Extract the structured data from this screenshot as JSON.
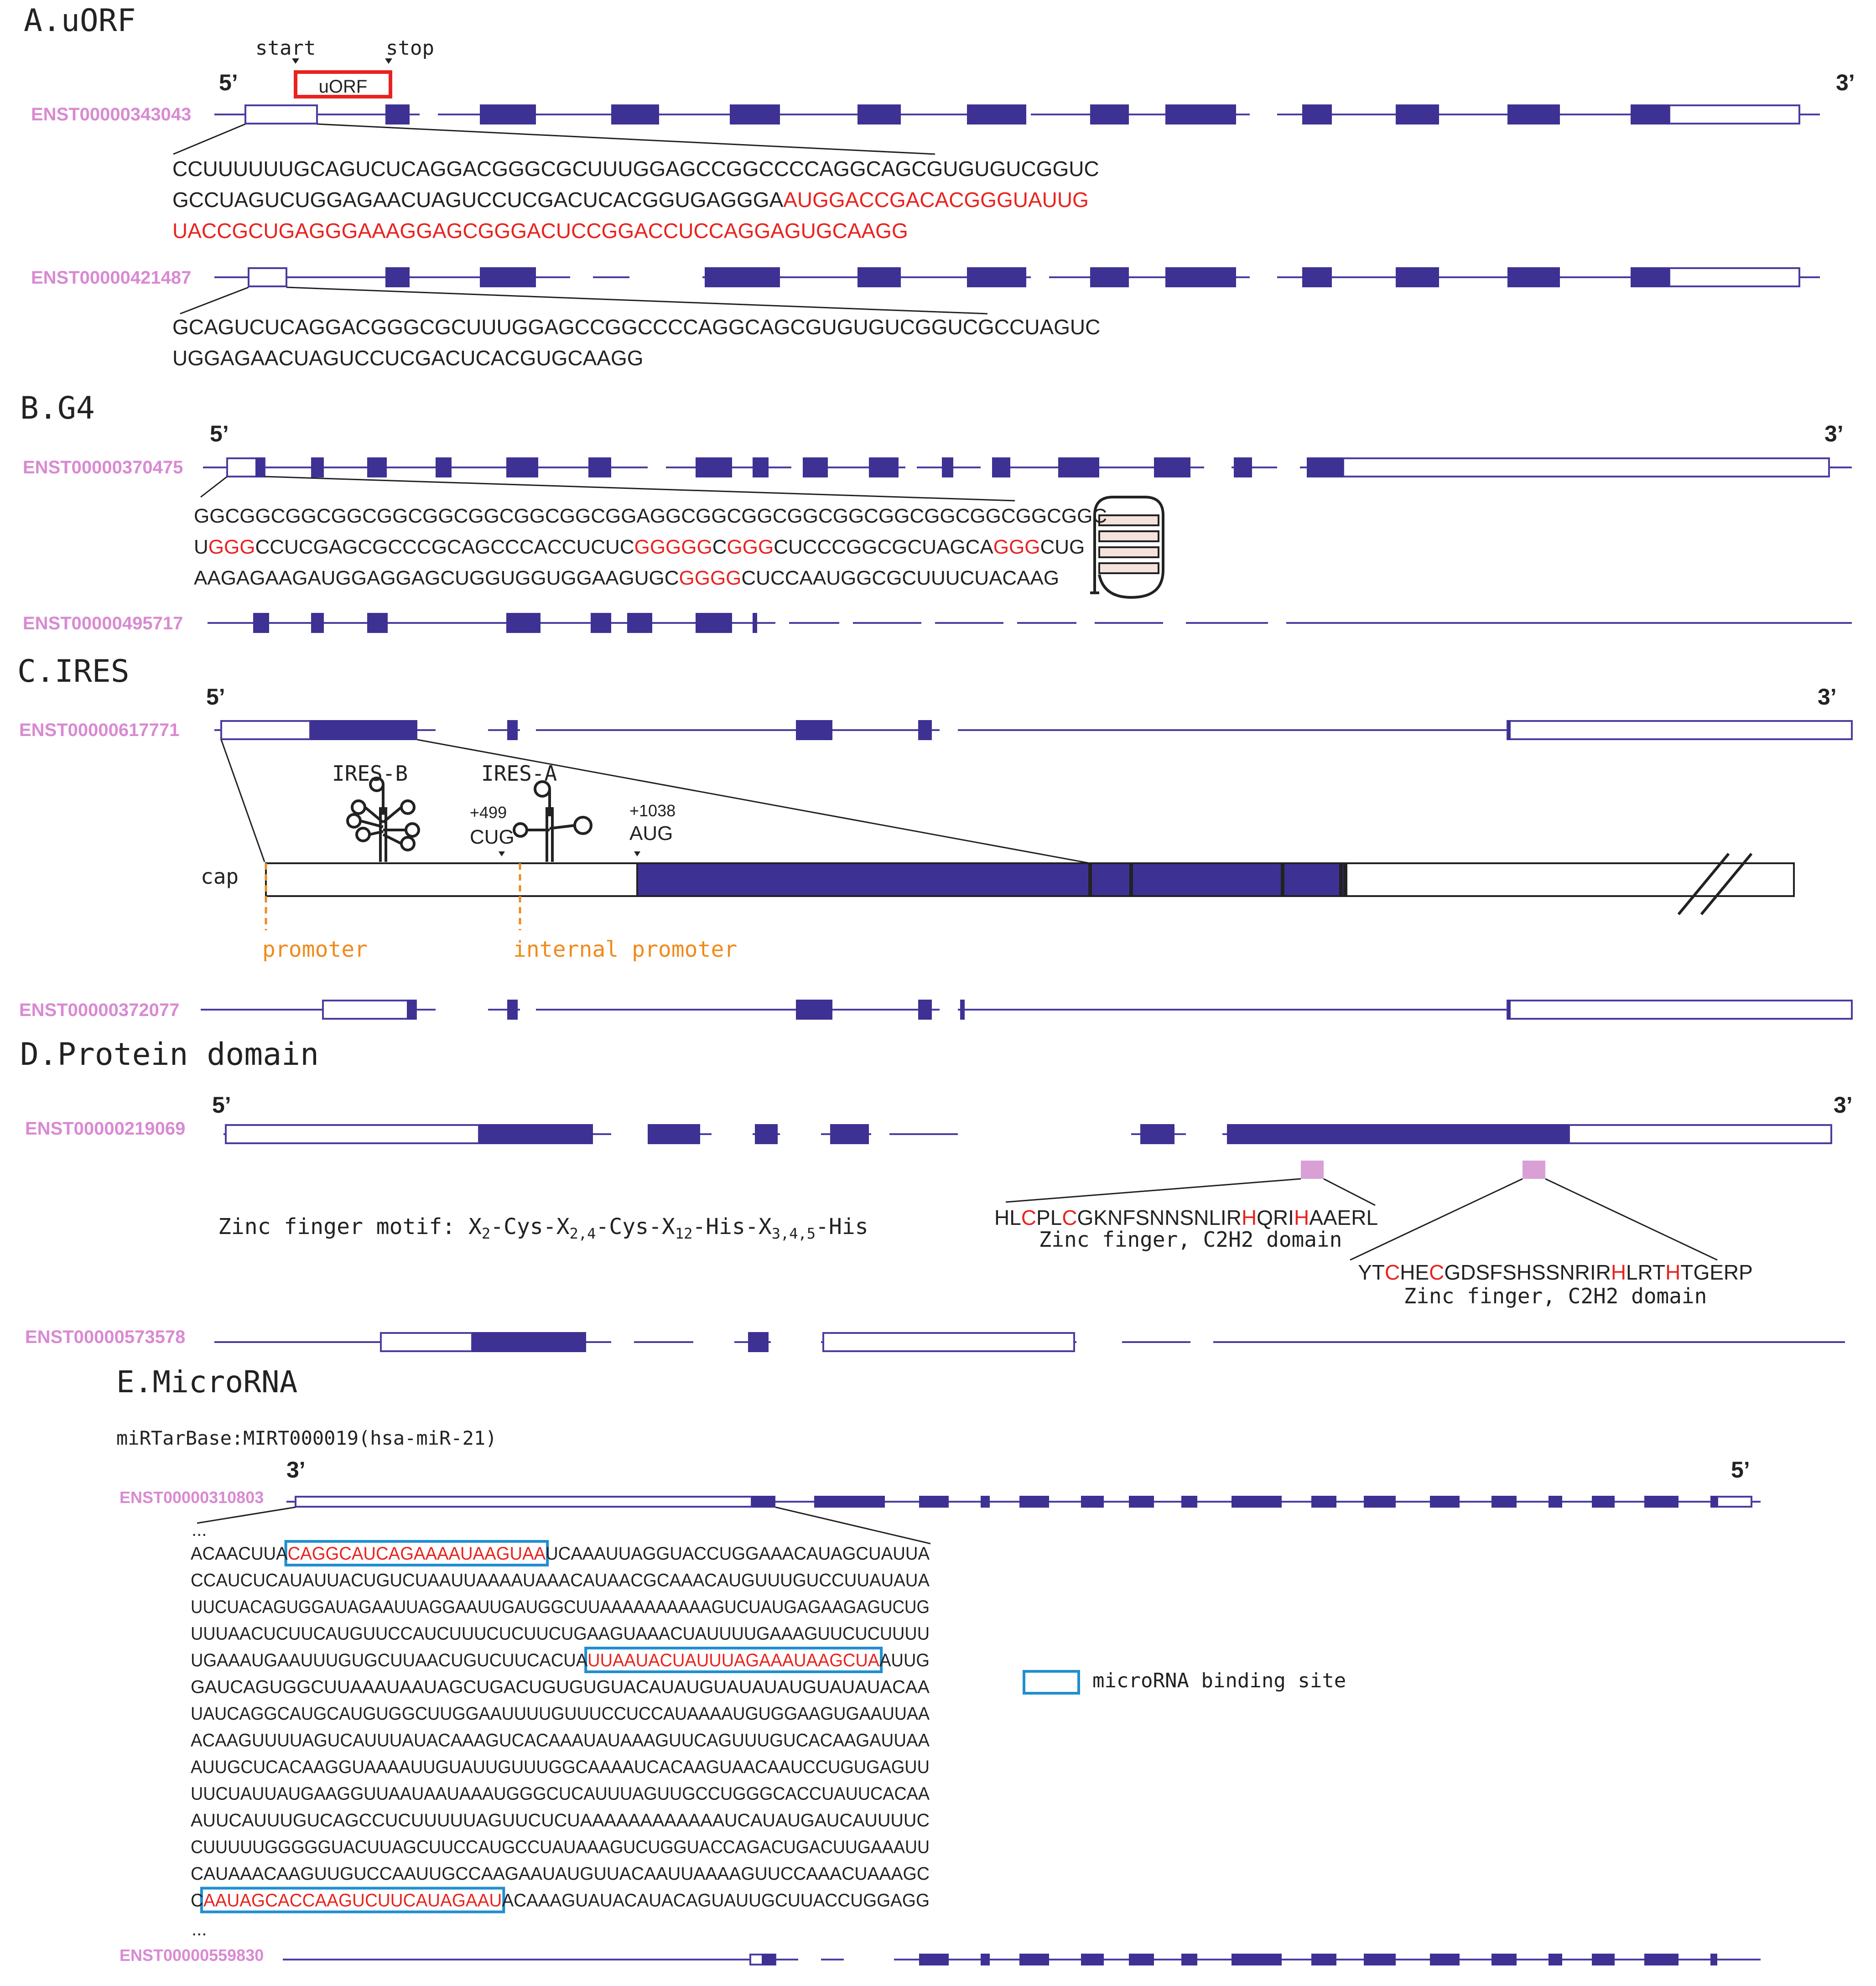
{
  "colors": {
    "exon": "#3e3194",
    "line": "#4a3ea0",
    "tid": "#d98ad2",
    "red": "#e8231f",
    "orange": "#f08a1c",
    "blue": "#1f8fcf",
    "motif": "#d8a0d4",
    "text": "#222222"
  },
  "sectionA": {
    "title": "A.uORF",
    "start_label": "start",
    "stop_label": "stop",
    "uorf_label": "uORF",
    "five": "5’",
    "three": "3’",
    "tx1": "ENST00000343043",
    "tx2": "ENST00000421487",
    "seq1": [
      [
        [
          "CCUUUUUUGCAGUCUCAGGACGGGCGCUUUGGAGCCGGCCCCAGGCAGCGUGUGUCGGUC",
          "n"
        ]
      ],
      [
        [
          "GCCUAGUCUGGAGAACUAGUCCUCGACUCACGGUGAGGGA",
          "n"
        ],
        [
          "AUGGACCGACACGGGUAUUG",
          "r"
        ]
      ],
      [
        [
          "UACCGCUGAGGGAAAGGAGCGGGACUCCGGACCUCCAGGAGUGCAAGG",
          "r"
        ]
      ]
    ],
    "seq2": [
      [
        [
          "GCAGUCUCAGGACGGGCGCUUUGGAGCCGGCCCCAGGCAGCGUGUGUCGGUCGCCUAGUC",
          "n"
        ]
      ],
      [
        [
          "UGGAGAACUAGUCCUCGACUCACGUGCAAGG",
          "n"
        ]
      ]
    ]
  },
  "sectionB": {
    "title": "B.G4",
    "five": "5’",
    "three": "3’",
    "tx1": "ENST00000370475",
    "tx2": "ENST00000495717",
    "seq": [
      [
        [
          "GGCGGCGGCGGCGGCGGCGGCGGCGGCGGAGGCGGCGGCGGCGGCGGCGGCGGCGGCGGC",
          "n"
        ]
      ],
      [
        [
          "U",
          "n"
        ],
        [
          "GGG",
          "r"
        ],
        [
          "CCUCGAGCGCCCGCAGCCCACCUCUC",
          "n"
        ],
        [
          "GGGGG",
          "r"
        ],
        [
          "C",
          "n"
        ],
        [
          "GGG",
          "r"
        ],
        [
          "CUCCCGGCGCUAGCA",
          "n"
        ],
        [
          "GGG",
          "r"
        ],
        [
          "CUG",
          "n"
        ]
      ],
      [
        [
          "AAGAGAAGAUGGAGGAGCUGGUGGUGGAAGUGC",
          "n"
        ],
        [
          "GGGG",
          "r"
        ],
        [
          "CUCCAAUGGCGCUUUCUACAAG",
          "n"
        ]
      ]
    ]
  },
  "sectionC": {
    "title": "C.IRES",
    "five": "5’",
    "three": "3’",
    "tx1": "ENST00000617771",
    "tx2": "ENST00000372077",
    "ires_b": "IRES-B",
    "ires_a": "IRES-A",
    "pos_cug": "+499",
    "cug": "CUG",
    "pos_aug": "+1038",
    "aug": "AUG",
    "cap": "cap",
    "promoter": "promoter",
    "internal_promoter": "internal promoter"
  },
  "sectionD": {
    "title": "D.Protein domain",
    "five": "5’",
    "three": "3’",
    "tx1": "ENST00000219069",
    "tx2": "ENST00000573578",
    "motif_lead": "Zinc finger motif: X",
    "motif_parts": [
      "2",
      "-Cys-X",
      "2,4",
      "-Cys-X",
      "12",
      "-His-X",
      "3,4,5",
      "-His"
    ],
    "zf1_seq": [
      [
        "HL",
        "n"
      ],
      [
        "C",
        "r"
      ],
      [
        "PL",
        "n"
      ],
      [
        "C",
        "r"
      ],
      [
        "GKNFSNNSNLIR",
        "n"
      ],
      [
        "H",
        "r"
      ],
      [
        "QRI",
        "n"
      ],
      [
        "H",
        "r"
      ],
      [
        "AAERL",
        "n"
      ]
    ],
    "zf1_label": "Zinc finger, C2H2 domain",
    "zf2_seq": [
      [
        "YT",
        "n"
      ],
      [
        "C",
        "r"
      ],
      [
        "HE",
        "n"
      ],
      [
        "C",
        "r"
      ],
      [
        "GDSFSHSSNRIR",
        "n"
      ],
      [
        "H",
        "r"
      ],
      [
        "LRT",
        "n"
      ],
      [
        "H",
        "r"
      ],
      [
        "TGERP",
        "n"
      ]
    ],
    "zf2_label": "Zinc finger, C2H2 domain"
  },
  "sectionE": {
    "title": "E.MicroRNA",
    "source": "miRTarBase:MIRT000019(hsa-miR-21)",
    "three": "3’",
    "five": "5’",
    "tx1": "ENST00000310803",
    "tx2": "ENST00000559830",
    "ellipsis": "...",
    "legend": "microRNA binding site",
    "seq": [
      [
        [
          "ACAACUUA",
          "n"
        ],
        [
          "CAGGCAUCAGAAAAUAAGUAA",
          "b"
        ],
        [
          "UCAAAUUAGGUACCUGGAAACAUAGCUAUUA",
          "n"
        ]
      ],
      [
        [
          "CCAUCUCAUAUUACUGUCUAAUUAAAAUAAACAUAACGCAAACAUGUUUGUCCUUAUAUA",
          "n"
        ]
      ],
      [
        [
          "UUCUACAGUGGAUAGAAUUAGGAAUUGAUGGCUUAAAAAAAAAAGUCUAUGAGAAGAGUCUG",
          "n"
        ]
      ],
      [
        [
          "UUUAACUCUUCAUGUUCCAUCUUUCUCUUCUGAAGUAAACUAUUUUGAAAGUUCUCUUUU",
          "n"
        ]
      ],
      [
        [
          "UGAAAUGAAUUUGUGCUUAACUGUCUUCACUA",
          "n"
        ],
        [
          "UUAAUACUAUUUAGAAAUAAGCUA",
          "b"
        ],
        [
          "AUUG",
          "n"
        ]
      ],
      [
        [
          "GAUCAGUGGCUUAAAUAAUAGCUGACUGUGUGUACAUAUGUAUAUAUGUAUAUACAA",
          "n"
        ]
      ],
      [
        [
          "UAUCAGGCAUGCAUGUGGCUUGGAAUUUUGUUUCCUCCAUAAAAUGUGGAAGUGAAUUAA",
          "n"
        ]
      ],
      [
        [
          "ACAAGUUUUAGUCAUUUAUACAAAGUCACAAAUAUAAAGUUCAGUUUGUCACAAGAUUAA",
          "n"
        ]
      ],
      [
        [
          "AUUGCUCACAAGGUAAAAUUGUAUUGUUUGGCAAAAUCACAAGUAACAAUCCUGUGAGUU",
          "n"
        ]
      ],
      [
        [
          "UUCUAUUAUGAAGGUUAAUAAUAAAUGGGCUCAUUUAGUUGCCUGGGCACCUAUUCACAA",
          "n"
        ]
      ],
      [
        [
          "AUUCAUUUGUCAGCCUCUUUUUAGUUCUCUAAAAAAAAAAAAUCAUAUGAUCAUUUUC",
          "n"
        ]
      ],
      [
        [
          "CUUUUUGGGGGUACUUAGCUUCCAUGCCUAUAAAGUCUGGUACCAGACUGACUUGAAAUU",
          "n"
        ]
      ],
      [
        [
          "CAUAAACAAGUUGUCCAAUUGCCAAGAAUAUGUUACAAUUAAAAGUUCCAAACUAAAGC",
          "n"
        ]
      ],
      [
        [
          "C",
          "n"
        ],
        [
          "AAUAGCACCAAGUCUUCAUAGAAU",
          "b"
        ],
        [
          "ACAAAGUAUACAUACAGUAUUGCUUACCUGGAGG",
          "n"
        ]
      ]
    ]
  }
}
